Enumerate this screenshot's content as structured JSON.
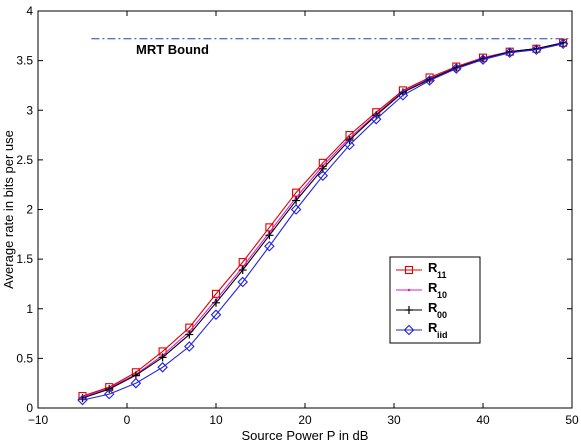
{
  "chart_data": {
    "type": "line",
    "xlabel": "Source Power P in dB",
    "ylabel": "Average rate in bits per use",
    "xlim": [
      -10,
      50
    ],
    "ylim": [
      0,
      4
    ],
    "xticks": [
      -10,
      0,
      10,
      20,
      30,
      40,
      50
    ],
    "yticks": [
      0,
      0.5,
      1,
      1.5,
      2,
      2.5,
      3,
      3.5,
      4
    ],
    "xtick_labels": [
      "−10",
      "0",
      "10",
      "20",
      "30",
      "40",
      "50"
    ],
    "ytick_labels": [
      "0",
      "0.5",
      "1",
      "1.5",
      "2",
      "2.5",
      "3",
      "3.5",
      "4"
    ],
    "grid": false,
    "legend_position": "center-right",
    "x": [
      -5,
      -2,
      1,
      4,
      7,
      10,
      13,
      16,
      19,
      22,
      25,
      28,
      31,
      34,
      37,
      40,
      43,
      46,
      49
    ],
    "series": [
      {
        "name": "R",
        "sub": "11",
        "color": "#e00000",
        "marker": "square",
        "values": [
          0.12,
          0.21,
          0.36,
          0.57,
          0.81,
          1.15,
          1.47,
          1.82,
          2.17,
          2.47,
          2.75,
          2.98,
          3.2,
          3.33,
          3.44,
          3.53,
          3.59,
          3.62,
          3.68
        ]
      },
      {
        "name": "R",
        "sub": "10",
        "color": "#d020d0",
        "marker": "dot",
        "values": [
          0.11,
          0.2,
          0.34,
          0.53,
          0.77,
          1.09,
          1.42,
          1.77,
          2.12,
          2.44,
          2.72,
          2.96,
          3.19,
          3.32,
          3.43,
          3.53,
          3.59,
          3.62,
          3.68
        ]
      },
      {
        "name": "R",
        "sub": "00",
        "color": "#000000",
        "marker": "plus",
        "values": [
          0.1,
          0.19,
          0.33,
          0.51,
          0.74,
          1.06,
          1.39,
          1.74,
          2.09,
          2.41,
          2.7,
          2.95,
          3.18,
          3.31,
          3.43,
          3.52,
          3.59,
          3.62,
          3.68
        ]
      },
      {
        "name": "R",
        "sub": "iid",
        "color": "#2020e0",
        "marker": "diamond",
        "values": [
          0.08,
          0.14,
          0.25,
          0.41,
          0.62,
          0.94,
          1.27,
          1.63,
          2.0,
          2.34,
          2.65,
          2.91,
          3.15,
          3.3,
          3.42,
          3.51,
          3.58,
          3.61,
          3.67
        ]
      }
    ],
    "annotations": [
      {
        "label": "MRT Bound",
        "y": 3.72,
        "x_start": -4,
        "x_end": 50,
        "color": "#2040c0",
        "style": "dash-dot"
      }
    ]
  }
}
